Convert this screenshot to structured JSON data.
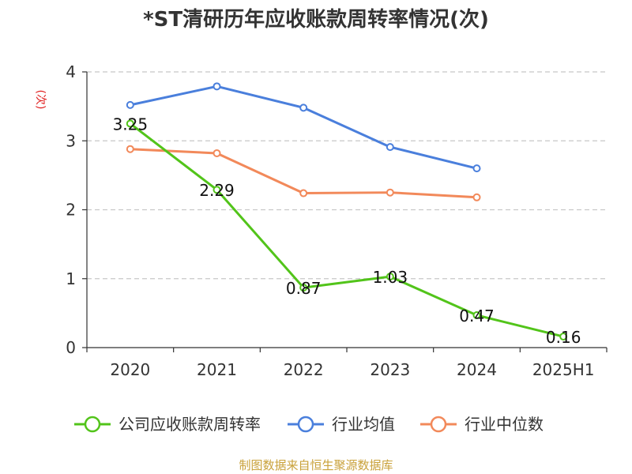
{
  "chart_data": {
    "type": "line",
    "title": "*ST清研历年应收账款周转率情况(次)",
    "ylabel": "(次)",
    "xlabel": "",
    "categories": [
      "2020",
      "2021",
      "2022",
      "2023",
      "2024",
      "2025H1"
    ],
    "ylim": [
      0,
      4
    ],
    "yticks": [
      0,
      1,
      2,
      3,
      4
    ],
    "grid": true,
    "legend_position": "bottom",
    "series": [
      {
        "name": "公司应收账款周转率",
        "color": "#52c41a",
        "values": [
          3.25,
          2.29,
          0.87,
          1.03,
          0.47,
          0.16
        ],
        "show_labels": true
      },
      {
        "name": "行业均值",
        "color": "#4a7fdc",
        "values": [
          3.52,
          3.79,
          3.48,
          2.91,
          2.6,
          null
        ],
        "show_labels": false
      },
      {
        "name": "行业中位数",
        "color": "#f2895a",
        "values": [
          2.88,
          2.82,
          2.24,
          2.25,
          2.18,
          null
        ],
        "show_labels": false
      }
    ]
  },
  "source": "制图数据来自恒生聚源数据库"
}
